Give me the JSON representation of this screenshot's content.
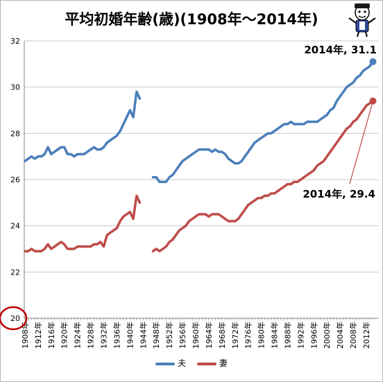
{
  "chart_data": {
    "type": "line",
    "title": "平均初婚年齢(歳)(1908年〜2014年)",
    "ylim": [
      20,
      32
    ],
    "yticks": [
      "20",
      "22",
      "24",
      "26",
      "28",
      "30",
      "32"
    ],
    "xlim": [
      1908,
      2014
    ],
    "xticks": [
      "1908年",
      "1912年",
      "1916年",
      "1920年",
      "1924年",
      "1928年",
      "1932年",
      "1936年",
      "1940年",
      "1944年",
      "1948年",
      "1952年",
      "1956年",
      "1960年",
      "1964年",
      "1968年",
      "1972年",
      "1976年",
      "1980年",
      "1984年",
      "1988年",
      "1992年",
      "1996年",
      "2000年",
      "2004年",
      "2008年",
      "2012年"
    ],
    "grid": "horizontal",
    "legend_position": "bottom",
    "series": [
      {
        "name": "夫",
        "color": "#4a7ebb",
        "segments": [
          {
            "x": [
              1908,
              1909,
              1910,
              1911,
              1912,
              1913,
              1914,
              1915,
              1916,
              1917,
              1918,
              1919,
              1920,
              1921,
              1922,
              1923,
              1924,
              1925,
              1926,
              1927,
              1928,
              1929,
              1930,
              1931,
              1932,
              1933,
              1934,
              1935,
              1936,
              1937,
              1938,
              1939,
              1940,
              1941,
              1942,
              1943
            ],
            "y": [
              26.8,
              26.9,
              27.0,
              26.9,
              27.0,
              27.0,
              27.1,
              27.4,
              27.1,
              27.2,
              27.3,
              27.4,
              27.4,
              27.1,
              27.1,
              27.0,
              27.1,
              27.1,
              27.1,
              27.2,
              27.3,
              27.4,
              27.3,
              27.3,
              27.4,
              27.6,
              27.7,
              27.8,
              27.9,
              28.1,
              28.4,
              28.7,
              29.0,
              28.7,
              29.8,
              29.5
            ]
          },
          {
            "x": [
              1947,
              1948,
              1949,
              1950,
              1951,
              1952,
              1953,
              1954,
              1955,
              1956,
              1957,
              1958,
              1959,
              1960,
              1961,
              1962,
              1963,
              1964,
              1965,
              1966,
              1967,
              1968,
              1969,
              1970,
              1971,
              1972,
              1973,
              1974,
              1975,
              1976,
              1977,
              1978,
              1979,
              1980,
              1981,
              1982,
              1983,
              1984,
              1985,
              1986,
              1987,
              1988,
              1989,
              1990,
              1991,
              1992,
              1993,
              1994,
              1995,
              1996,
              1997,
              1998,
              1999,
              2000,
              2001,
              2002,
              2003,
              2004,
              2005,
              2006,
              2007,
              2008,
              2009,
              2010,
              2011,
              2012,
              2013,
              2014
            ],
            "y": [
              26.1,
              26.1,
              25.9,
              25.9,
              25.9,
              26.1,
              26.2,
              26.4,
              26.6,
              26.8,
              26.9,
              27.0,
              27.1,
              27.2,
              27.3,
              27.3,
              27.3,
              27.3,
              27.2,
              27.3,
              27.2,
              27.2,
              27.1,
              26.9,
              26.8,
              26.7,
              26.7,
              26.8,
              27.0,
              27.2,
              27.4,
              27.6,
              27.7,
              27.8,
              27.9,
              28.0,
              28.0,
              28.1,
              28.2,
              28.3,
              28.4,
              28.4,
              28.5,
              28.4,
              28.4,
              28.4,
              28.4,
              28.5,
              28.5,
              28.5,
              28.5,
              28.6,
              28.7,
              28.8,
              29.0,
              29.1,
              29.4,
              29.6,
              29.8,
              30.0,
              30.1,
              30.2,
              30.4,
              30.5,
              30.7,
              30.8,
              30.9,
              31.1
            ]
          }
        ],
        "end_label": "2014年, 31.1"
      },
      {
        "name": "妻",
        "color": "#be4b48",
        "segments": [
          {
            "x": [
              1908,
              1909,
              1910,
              1911,
              1912,
              1913,
              1914,
              1915,
              1916,
              1917,
              1918,
              1919,
              1920,
              1921,
              1922,
              1923,
              1924,
              1925,
              1926,
              1927,
              1928,
              1929,
              1930,
              1931,
              1932,
              1933,
              1934,
              1935,
              1936,
              1937,
              1938,
              1939,
              1940,
              1941,
              1942,
              1943
            ],
            "y": [
              22.9,
              22.9,
              23.0,
              22.9,
              22.9,
              22.9,
              23.0,
              23.2,
              23.0,
              23.1,
              23.2,
              23.3,
              23.2,
              23.0,
              23.0,
              23.0,
              23.1,
              23.1,
              23.1,
              23.1,
              23.1,
              23.2,
              23.2,
              23.3,
              23.1,
              23.6,
              23.7,
              23.8,
              23.9,
              24.2,
              24.4,
              24.5,
              24.6,
              24.3,
              25.3,
              25.0
            ]
          },
          {
            "x": [
              1947,
              1948,
              1949,
              1950,
              1951,
              1952,
              1953,
              1954,
              1955,
              1956,
              1957,
              1958,
              1959,
              1960,
              1961,
              1962,
              1963,
              1964,
              1965,
              1966,
              1967,
              1968,
              1969,
              1970,
              1971,
              1972,
              1973,
              1974,
              1975,
              1976,
              1977,
              1978,
              1979,
              1980,
              1981,
              1982,
              1983,
              1984,
              1985,
              1986,
              1987,
              1988,
              1989,
              1990,
              1991,
              1992,
              1993,
              1994,
              1995,
              1996,
              1997,
              1998,
              1999,
              2000,
              2001,
              2002,
              2003,
              2004,
              2005,
              2006,
              2007,
              2008,
              2009,
              2010,
              2011,
              2012,
              2013,
              2014
            ],
            "y": [
              22.9,
              23.0,
              22.9,
              23.0,
              23.1,
              23.3,
              23.4,
              23.6,
              23.8,
              23.9,
              24.0,
              24.2,
              24.3,
              24.4,
              24.5,
              24.5,
              24.5,
              24.4,
              24.5,
              24.5,
              24.5,
              24.4,
              24.3,
              24.2,
              24.2,
              24.2,
              24.3,
              24.5,
              24.7,
              24.9,
              25.0,
              25.1,
              25.2,
              25.2,
              25.3,
              25.3,
              25.4,
              25.4,
              25.5,
              25.6,
              25.7,
              25.8,
              25.8,
              25.9,
              25.9,
              26.0,
              26.1,
              26.2,
              26.3,
              26.4,
              26.6,
              26.7,
              26.8,
              27.0,
              27.2,
              27.4,
              27.6,
              27.8,
              28.0,
              28.2,
              28.3,
              28.5,
              28.6,
              28.8,
              29.0,
              29.2,
              29.3,
              29.4
            ]
          }
        ],
        "end_label": "2014年, 29.4"
      }
    ]
  },
  "legend": [
    {
      "label": "夫",
      "color": "#4a7ebb"
    },
    {
      "label": "妻",
      "color": "#be4b48"
    }
  ],
  "annotation_color": "#c00000",
  "mascot_icon": "cartoon-mascot-icon"
}
